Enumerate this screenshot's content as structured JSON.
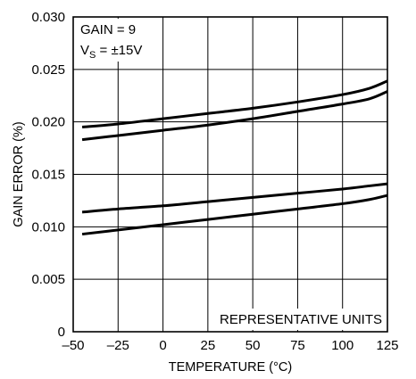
{
  "chart_data": {
    "type": "line",
    "title": "",
    "xlabel": "TEMPERATURE (°C)",
    "ylabel": "GAIN ERROR (%)",
    "xlim": [
      -50,
      125
    ],
    "ylim": [
      0,
      0.03
    ],
    "x_ticks": [
      -50,
      -25,
      0,
      25,
      50,
      75,
      100,
      125
    ],
    "x_tick_labels": [
      "–50",
      "–25",
      "0",
      "25",
      "50",
      "75",
      "100",
      "125"
    ],
    "y_ticks": [
      0,
      0.005,
      0.01,
      0.015,
      0.02,
      0.025,
      0.03
    ],
    "y_tick_labels": [
      "0",
      "0.005",
      "0.010",
      "0.015",
      "0.020",
      "0.025",
      "0.030"
    ],
    "grid": true,
    "annotations": {
      "gain_line": "GAIN = 9",
      "vs_prefix": "V",
      "vs_sub": "S",
      "vs_value": " = ±15V",
      "units_note": "REPRESENTATIVE UNITS"
    },
    "series": [
      {
        "color": "#000000",
        "x": [
          -45,
          -25,
          0,
          25,
          50,
          75,
          100,
          115,
          125
        ],
        "y": [
          0.0195,
          0.0198,
          0.0203,
          0.0208,
          0.0213,
          0.0219,
          0.0226,
          0.0232,
          0.0239
        ]
      },
      {
        "color": "#000000",
        "x": [
          -45,
          -25,
          0,
          25,
          50,
          75,
          100,
          115,
          125
        ],
        "y": [
          0.0183,
          0.0187,
          0.0192,
          0.0197,
          0.0203,
          0.021,
          0.0217,
          0.0222,
          0.0229
        ]
      },
      {
        "color": "#000000",
        "x": [
          -45,
          -25,
          0,
          25,
          50,
          75,
          100,
          115,
          125
        ],
        "y": [
          0.0114,
          0.0117,
          0.012,
          0.0124,
          0.0128,
          0.0132,
          0.0136,
          0.0139,
          0.0141
        ]
      },
      {
        "color": "#000000",
        "x": [
          -45,
          -25,
          0,
          25,
          50,
          75,
          100,
          115,
          125
        ],
        "y": [
          0.0093,
          0.0097,
          0.0102,
          0.0107,
          0.0112,
          0.0117,
          0.0122,
          0.0126,
          0.013
        ]
      }
    ]
  }
}
